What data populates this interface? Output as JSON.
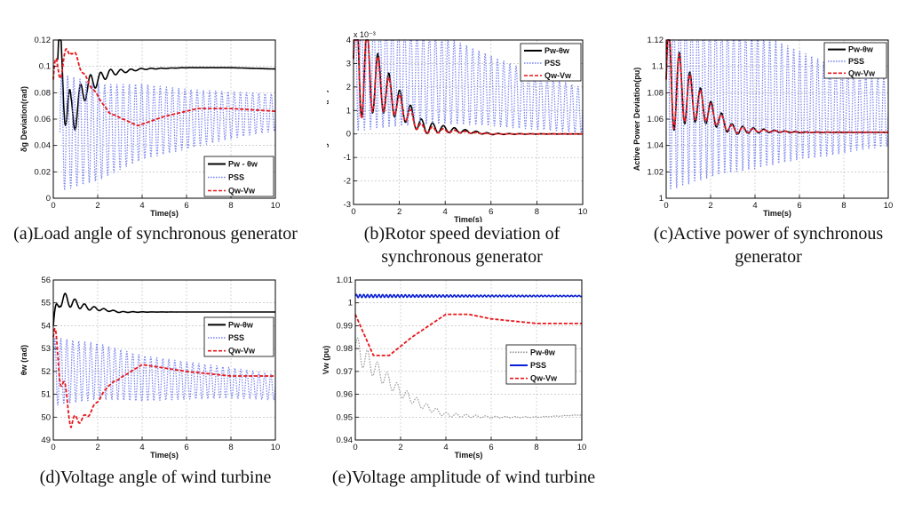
{
  "chart_data": [
    {
      "id": "a",
      "type": "line",
      "caption": "(a)Load angle of synchronous generator",
      "xlabel": "Time(s)",
      "ylabel": "δg Deviation(rad)",
      "xlim": [
        0,
        10
      ],
      "ylim": [
        0,
        0.12
      ],
      "xticks": [
        0,
        2,
        4,
        6,
        8,
        10
      ],
      "xtick_labels": [
        "0",
        "2",
        "4",
        "6",
        "8",
        "10"
      ],
      "yticks": [
        0,
        0.02,
        0.04,
        0.06,
        0.08,
        0.1,
        0.12
      ],
      "ytick_labels": [
        "0",
        "0.02",
        "0.04",
        "0.06",
        "0.08",
        "0.1",
        "0.12"
      ],
      "grid": true,
      "legend_position": "bottom-right",
      "series": [
        {
          "name": "Pw - θw",
          "color": "#000000",
          "style": "solid",
          "x": [
            0.2,
            0.8,
            1.5,
            2.5,
            4,
            6,
            8,
            10
          ],
          "y": [
            0.105,
            0.06,
            0.085,
            0.095,
            0.098,
            0.099,
            0.099,
            0.098
          ]
        },
        {
          "name": "PSS",
          "color": "#7b86f0",
          "style": "dotted",
          "x": [
            0.3,
            2,
            4,
            6,
            8,
            10
          ],
          "y": [
            0.05,
            0.05,
            0.058,
            0.06,
            0.063,
            0.065
          ]
        },
        {
          "name": "Qw-Vw",
          "color": "#e8161b",
          "style": "dashed",
          "x": [
            0,
            0.8,
            1.5,
            2.5,
            3.8,
            5,
            6.5,
            8,
            10
          ],
          "y": [
            0.09,
            0.114,
            0.09,
            0.065,
            0.055,
            0.062,
            0.068,
            0.068,
            0.066
          ]
        }
      ]
    },
    {
      "id": "b",
      "type": "line",
      "caption": "(b)Rotor speed deviation of synchronous generator",
      "xlabel": "Time(s)",
      "ylabel": "ωg Deviation(pu)",
      "exponent": "x 10⁻³",
      "xlim": [
        0,
        10
      ],
      "ylim": [
        -3,
        4
      ],
      "xticks": [
        0,
        2,
        4,
        6,
        8,
        10
      ],
      "xtick_labels": [
        "0",
        "2",
        "4",
        "6",
        "8",
        "10"
      ],
      "yticks": [
        -3,
        -2,
        -1,
        0,
        1,
        2,
        3,
        4
      ],
      "ytick_labels": [
        "-3",
        "-2",
        "-1",
        "0",
        "1",
        "2",
        "3",
        "4"
      ],
      "grid": true,
      "legend_position": "top-right",
      "series": [
        {
          "name": "Pw-θw",
          "color": "#000000",
          "style": "solid",
          "x": [
            0,
            3,
            6,
            10
          ],
          "y": [
            3.2,
            0.3,
            0,
            0
          ]
        },
        {
          "name": "PSS",
          "color": "#7b86f0",
          "style": "dotted",
          "x": [
            0,
            4,
            7,
            10
          ],
          "y": [
            3.0,
            2.3,
            1.6,
            1.0
          ]
        },
        {
          "name": "Qw-Vw",
          "color": "#e8161b",
          "style": "dashed",
          "x": [
            0,
            3,
            6,
            10
          ],
          "y": [
            3.2,
            0.2,
            0,
            0
          ]
        }
      ]
    },
    {
      "id": "c",
      "type": "line",
      "caption": "(c)Active power of synchronous generator",
      "xlabel": "Time(s)",
      "ylabel": "Active Power Deviation(pu)",
      "xlim": [
        0,
        10
      ],
      "ylim": [
        1,
        1.12
      ],
      "xticks": [
        0,
        2,
        4,
        6,
        8,
        10
      ],
      "xtick_labels": [
        "0",
        "2",
        "4",
        "6",
        "8",
        "10"
      ],
      "yticks": [
        1,
        1.02,
        1.04,
        1.06,
        1.08,
        1.1,
        1.12
      ],
      "ytick_labels": [
        "1",
        "1.02",
        "1.04",
        "1.06",
        "1.08",
        "1.1",
        "1.12"
      ],
      "grid": true,
      "legend_position": "top-right",
      "series": [
        {
          "name": "Pw-θw",
          "color": "#000000",
          "style": "solid",
          "x": [
            0,
            3,
            6,
            10
          ],
          "y": [
            1.09,
            1.052,
            1.05,
            1.05
          ]
        },
        {
          "name": "PSS",
          "color": "#7b86f0",
          "style": "dotted",
          "x": [
            0,
            4,
            7,
            10
          ],
          "y": [
            1.09,
            1.075,
            1.068,
            1.065
          ]
        },
        {
          "name": "Qw-Vw",
          "color": "#e8161b",
          "style": "dashed",
          "x": [
            0,
            3,
            6,
            10
          ],
          "y": [
            1.09,
            1.052,
            1.05,
            1.05
          ]
        }
      ]
    },
    {
      "id": "d",
      "type": "line",
      "caption": "(d)Voltage angle of wind turbine",
      "xlabel": "Time(s)",
      "ylabel": "θw (rad)",
      "xlim": [
        0,
        10
      ],
      "ylim": [
        49,
        56
      ],
      "xticks": [
        0,
        2,
        4,
        6,
        8,
        10
      ],
      "xtick_labels": [
        "0",
        "2",
        "4",
        "6",
        "8",
        "10"
      ],
      "yticks": [
        49,
        50,
        51,
        52,
        53,
        54,
        55,
        56
      ],
      "ytick_labels": [
        "49",
        "50",
        "51",
        "52",
        "53",
        "54",
        "55",
        "56"
      ],
      "grid": true,
      "legend_position": "top-right",
      "series": [
        {
          "name": "Pw-θw",
          "color": "#000000",
          "style": "solid",
          "x": [
            0,
            0.3,
            1.5,
            3,
            5,
            10
          ],
          "y": [
            54.0,
            55.2,
            54.8,
            54.6,
            54.6,
            54.6
          ]
        },
        {
          "name": "PSS",
          "color": "#7b86f0",
          "style": "dotted",
          "x": [
            0,
            2,
            4,
            6,
            8,
            10
          ],
          "y": [
            52.0,
            52.0,
            51.7,
            51.6,
            51.5,
            51.3
          ]
        },
        {
          "name": "Qw-Vw",
          "color": "#e8161b",
          "style": "dashed",
          "x": [
            0,
            0.8,
            1.5,
            2.5,
            4,
            6,
            8,
            10
          ],
          "y": [
            53.5,
            49.8,
            50.0,
            51.4,
            52.3,
            52.0,
            51.8,
            51.8
          ]
        }
      ]
    },
    {
      "id": "e",
      "type": "line",
      "caption": "(e)Voltage amplitude of wind turbine",
      "xlabel": "Time(s)",
      "ylabel": "Vw (pu)",
      "xlim": [
        0,
        10
      ],
      "ylim": [
        0.94,
        1.01
      ],
      "xticks": [
        0,
        2,
        4,
        6,
        8,
        10
      ],
      "xtick_labels": [
        "0",
        "2",
        "4",
        "6",
        "8",
        "10"
      ],
      "yticks": [
        0.94,
        0.95,
        0.96,
        0.97,
        0.98,
        0.99,
        1,
        1.01
      ],
      "ytick_labels": [
        "0.94",
        "0.95",
        "0.96",
        "0.97",
        "0.98",
        "0.99",
        "1",
        "1.01"
      ],
      "grid": true,
      "legend_position": "right",
      "series": [
        {
          "name": "Pw-θw",
          "color": "#9a9a9a",
          "style": "dotted",
          "x": [
            0,
            1,
            2,
            3,
            4,
            6,
            8,
            10
          ],
          "y": [
            0.98,
            0.97,
            0.961,
            0.955,
            0.951,
            0.95,
            0.95,
            0.951
          ]
        },
        {
          "name": "PSS",
          "color": "#0a1fd6",
          "style": "solid",
          "x": [
            0,
            5,
            10
          ],
          "y": [
            1.003,
            1.003,
            1.003
          ]
        },
        {
          "name": "Qw-Vw",
          "color": "#e8161b",
          "style": "dashed",
          "x": [
            0,
            0.8,
            1.5,
            2.5,
            4,
            5,
            6,
            8,
            10
          ],
          "y": [
            0.995,
            0.977,
            0.977,
            0.985,
            0.995,
            0.995,
            0.993,
            0.991,
            0.991
          ]
        }
      ]
    }
  ]
}
